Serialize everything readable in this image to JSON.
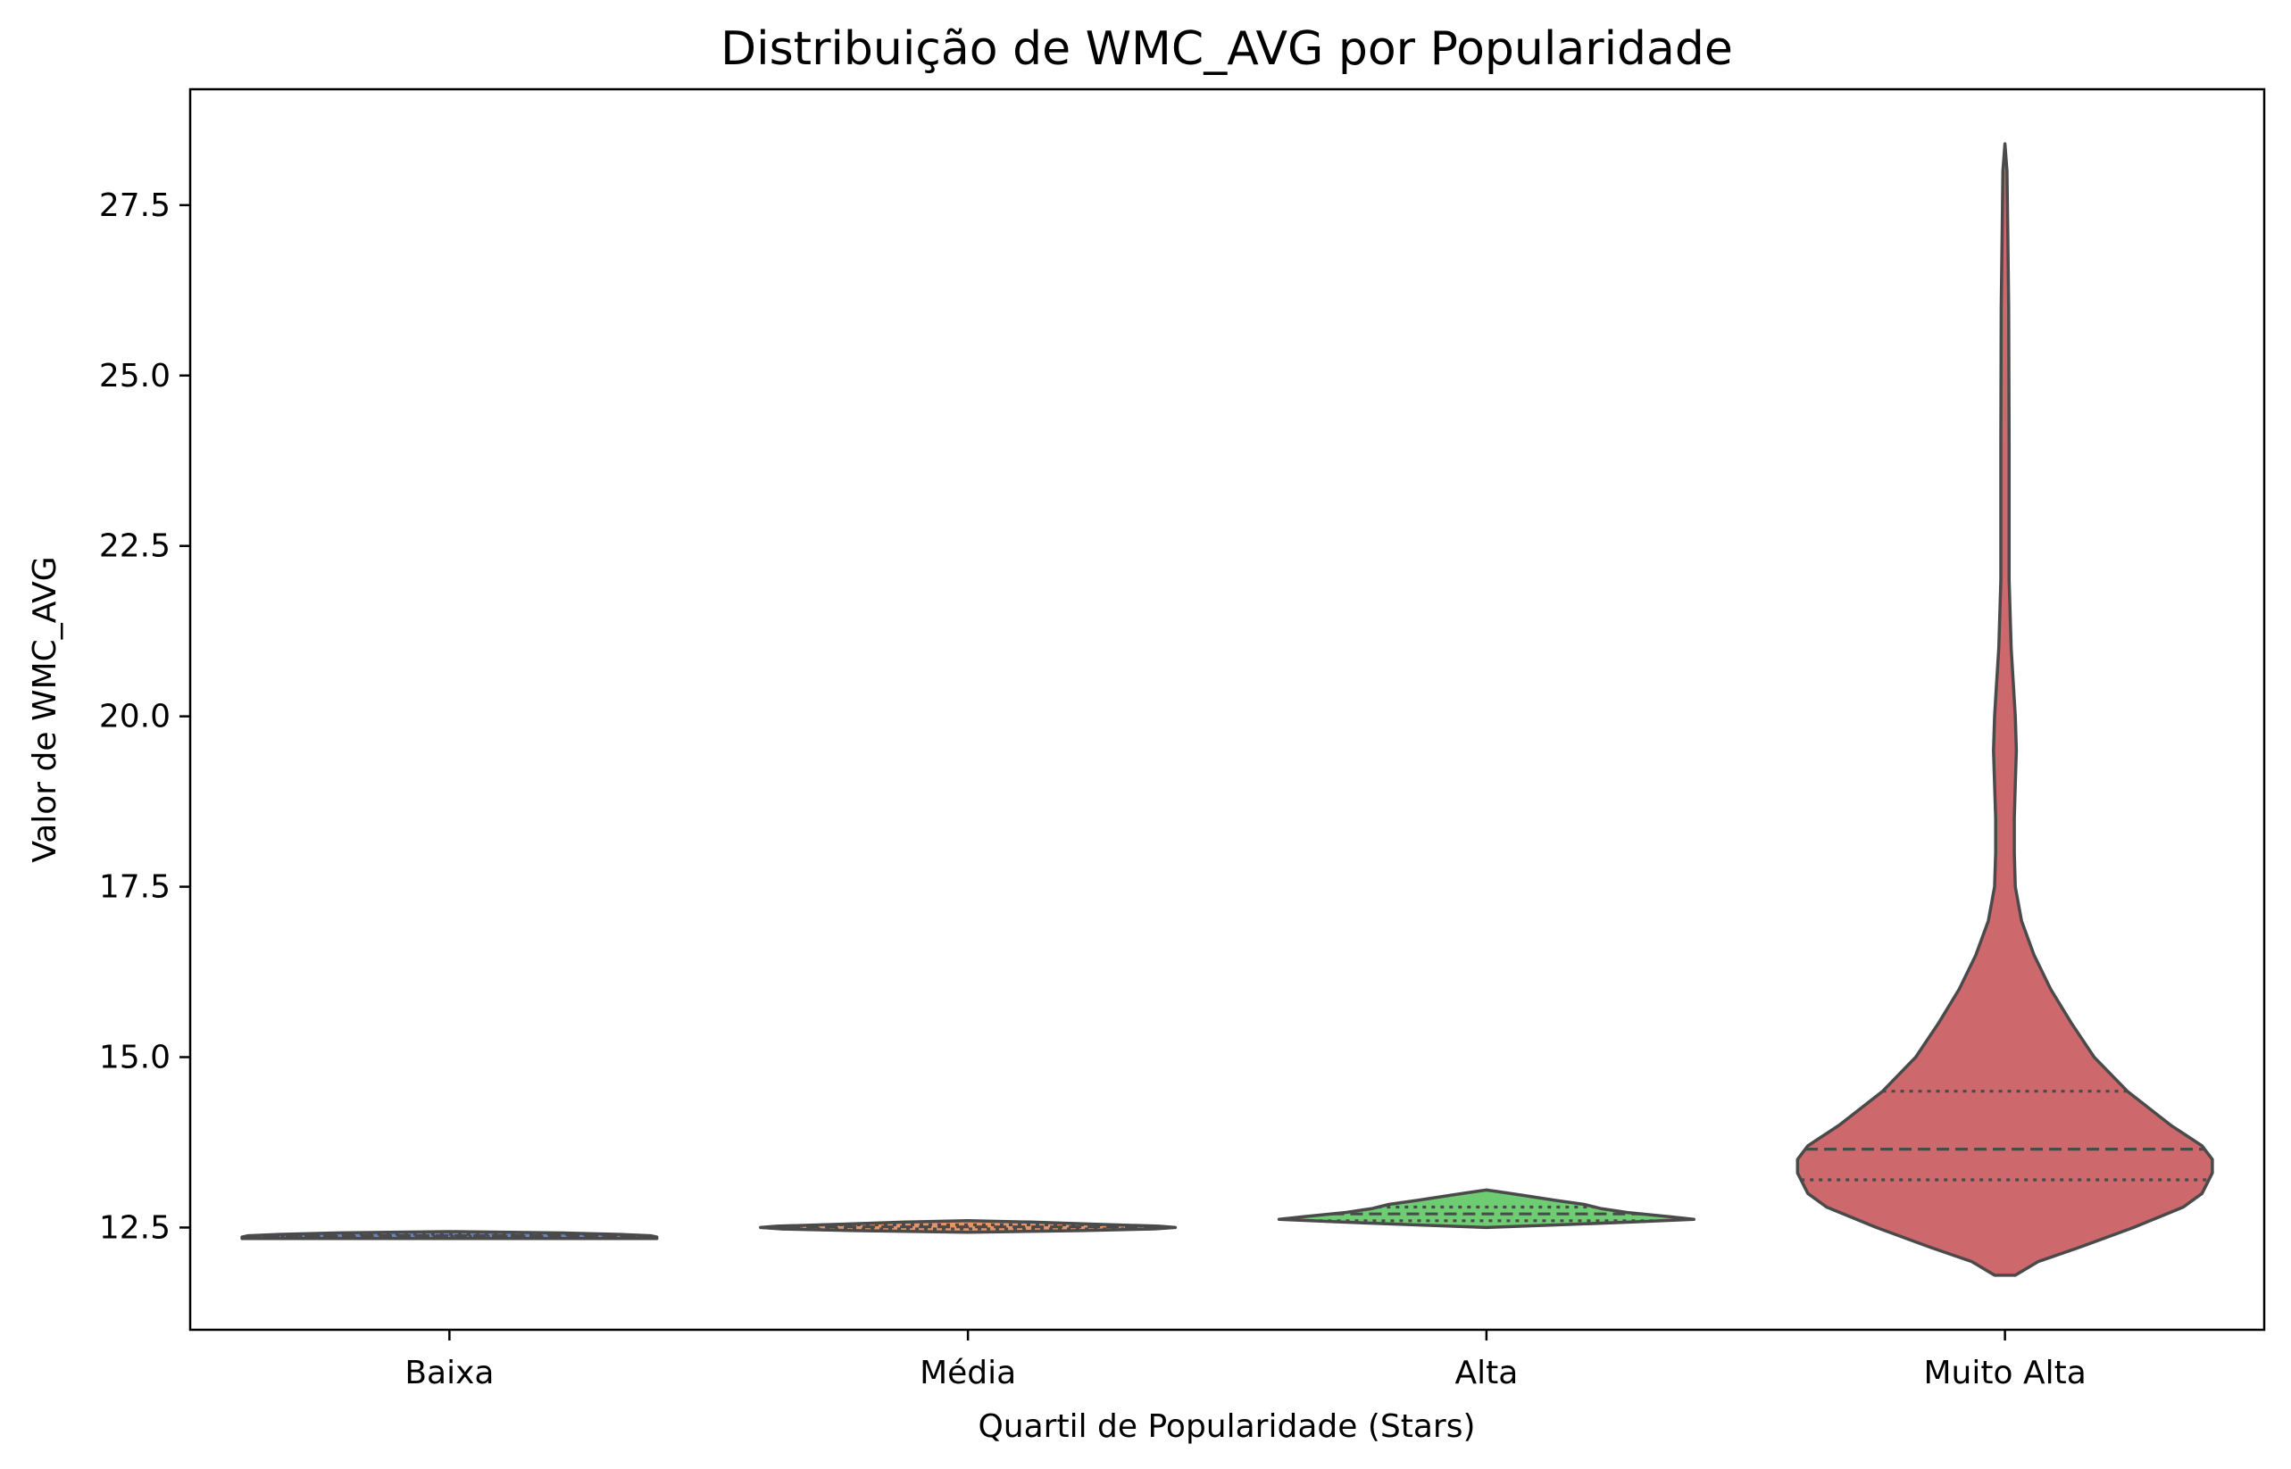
{
  "chart_data": {
    "type": "violin",
    "title": "Distribuição de WMC_AVG por Popularidade",
    "xlabel": "Quartil de Popularidade (Stars)",
    "ylabel": "Valor de WMC_AVG",
    "ylim": [
      11.0,
      29.2
    ],
    "yticks": [
      "12.5",
      "15.0",
      "17.5",
      "20.0",
      "22.5",
      "25.0",
      "27.5"
    ],
    "ytick_values": [
      12.5,
      15.0,
      17.5,
      20.0,
      22.5,
      25.0,
      27.5
    ],
    "grid": false,
    "legend": "none",
    "categories": [
      "Baixa",
      "Média",
      "Alta",
      "Muito Alta"
    ],
    "violins": [
      {
        "category": "Baixa",
        "color": "#4c72b0",
        "min": 12.34,
        "max": 12.44,
        "q1": 12.37,
        "median": 12.38,
        "q3": 12.4,
        "profile": [
          [
            12.34,
            1.0
          ],
          [
            12.36,
            1.0
          ],
          [
            12.38,
            0.97
          ],
          [
            12.4,
            0.82
          ],
          [
            12.42,
            0.55
          ],
          [
            12.44,
            0.0
          ]
        ]
      },
      {
        "category": "Média",
        "color": "#dd8452",
        "min": 12.43,
        "max": 12.6,
        "q1": 12.48,
        "median": 12.51,
        "q3": 12.54,
        "profile": [
          [
            12.43,
            0.0
          ],
          [
            12.455,
            0.55
          ],
          [
            12.48,
            0.9
          ],
          [
            12.5,
            1.0
          ],
          [
            12.52,
            0.92
          ],
          [
            12.55,
            0.6
          ],
          [
            12.58,
            0.3
          ],
          [
            12.6,
            0.0
          ]
        ]
      },
      {
        "category": "Alta",
        "color": "#55c45a",
        "min": 12.5,
        "max": 13.05,
        "q1": 12.6,
        "median": 12.7,
        "q3": 12.8,
        "profile": [
          [
            12.5,
            0.0
          ],
          [
            12.54,
            0.35
          ],
          [
            12.58,
            0.7
          ],
          [
            12.62,
            1.0
          ],
          [
            12.66,
            0.88
          ],
          [
            12.72,
            0.68
          ],
          [
            12.78,
            0.55
          ],
          [
            12.84,
            0.47
          ],
          [
            12.9,
            0.33
          ],
          [
            12.97,
            0.18
          ],
          [
            13.03,
            0.05
          ],
          [
            13.05,
            0.0
          ]
        ]
      },
      {
        "category": "Muito Alta",
        "color": "#c44e52",
        "min": 11.8,
        "max": 28.4,
        "q1": 13.2,
        "median": 13.65,
        "q3": 14.5,
        "profile": [
          [
            11.8,
            0.05
          ],
          [
            12.0,
            0.16
          ],
          [
            12.2,
            0.35
          ],
          [
            12.5,
            0.62
          ],
          [
            12.8,
            0.86
          ],
          [
            13.0,
            0.95
          ],
          [
            13.3,
            1.0
          ],
          [
            13.5,
            1.0
          ],
          [
            13.7,
            0.95
          ],
          [
            14.0,
            0.8
          ],
          [
            14.5,
            0.59
          ],
          [
            15.0,
            0.43
          ],
          [
            15.5,
            0.32
          ],
          [
            16.0,
            0.22
          ],
          [
            16.5,
            0.14
          ],
          [
            17.0,
            0.08
          ],
          [
            17.5,
            0.05
          ],
          [
            18.0,
            0.045
          ],
          [
            18.5,
            0.045
          ],
          [
            19.0,
            0.05
          ],
          [
            19.5,
            0.055
          ],
          [
            20.0,
            0.05
          ],
          [
            20.5,
            0.04
          ],
          [
            21.0,
            0.03
          ],
          [
            22.0,
            0.02
          ],
          [
            24.0,
            0.02
          ],
          [
            26.0,
            0.018
          ],
          [
            27.0,
            0.014
          ],
          [
            28.0,
            0.01
          ],
          [
            28.4,
            0.0
          ]
        ]
      }
    ]
  }
}
